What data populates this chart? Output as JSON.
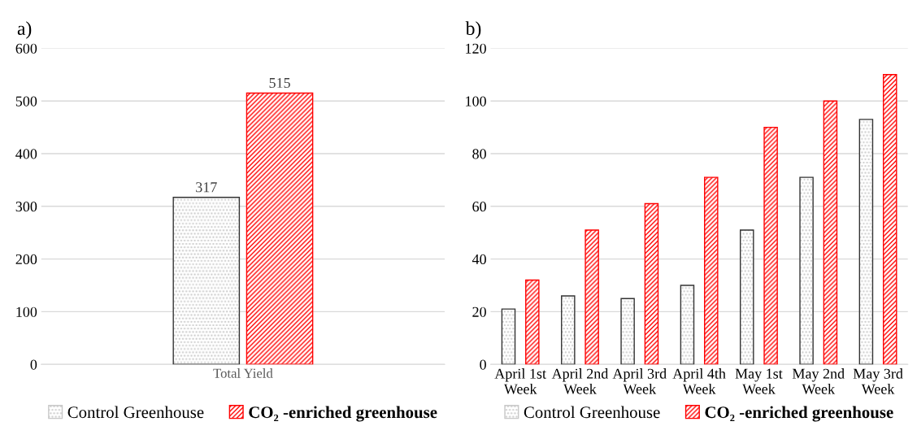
{
  "chart_data": [
    {
      "type": "bar",
      "title": "a)",
      "categories": [
        "Total Yield"
      ],
      "ylim": [
        0,
        600
      ],
      "yticks": [
        0,
        100,
        200,
        300,
        400,
        500,
        600
      ],
      "grid": "y",
      "legend": "bottom",
      "data_labels": true,
      "series": [
        {
          "name": "Control Greenhouse",
          "color": "#c8c8c8",
          "values": [
            317
          ]
        },
        {
          "name": "CO₂ -enriched greenhouse",
          "color": "#ff0000",
          "values": [
            515
          ]
        }
      ]
    },
    {
      "type": "bar",
      "title": "b)",
      "categories": [
        "April 1st\nWeek",
        "April 2nd\nWeek",
        "April 3rd\nWeek",
        "April 4th\nWeek",
        "May 1st\nWeek",
        "May 2nd\nWeek",
        "May 3rd\nWeek"
      ],
      "ylim": [
        0,
        120
      ],
      "yticks": [
        0,
        20,
        40,
        60,
        80,
        100,
        120
      ],
      "grid": "y",
      "legend": "bottom",
      "series": [
        {
          "name": "Control Greenhouse",
          "color": "#c8c8c8",
          "values": [
            21,
            26,
            25,
            30,
            51,
            71,
            93
          ]
        },
        {
          "name": "CO₂ -enriched greenhouse",
          "color": "#ff0000",
          "values": [
            32,
            51,
            61,
            71,
            90,
            100,
            110
          ]
        }
      ]
    }
  ]
}
